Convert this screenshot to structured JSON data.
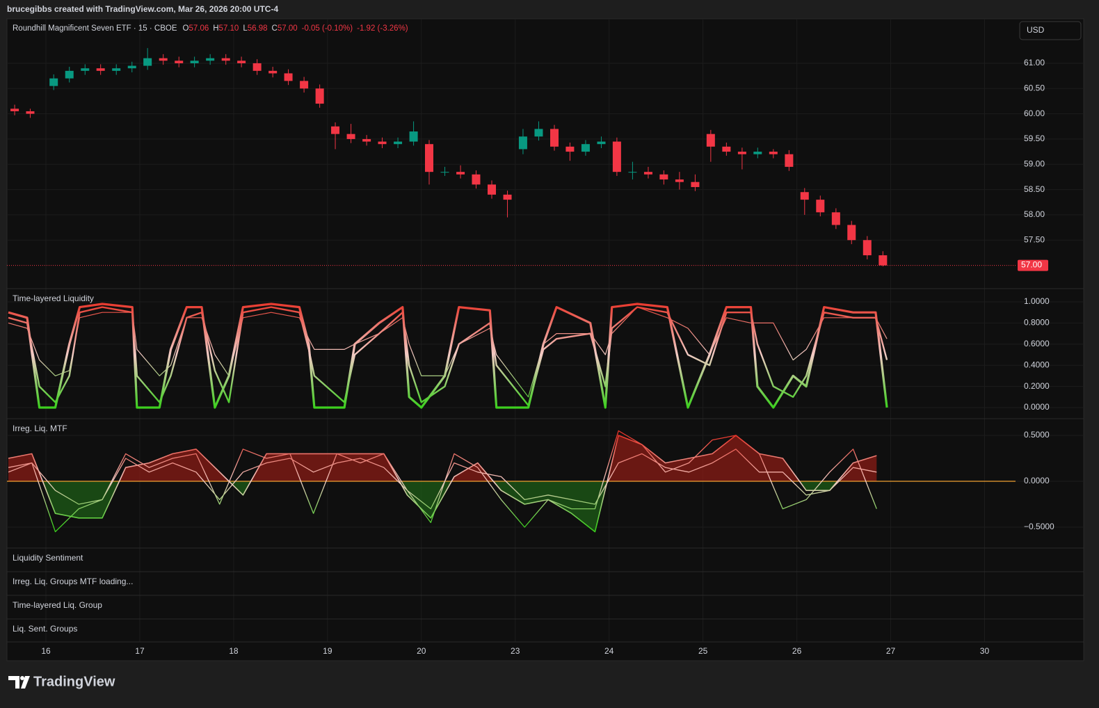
{
  "header": {
    "attribution": "brucegibbs created with TradingView.com, Mar 26, 2026 20:00 UTC-4"
  },
  "footer": {
    "brand": "TradingView"
  },
  "currency": "USD",
  "indicator_panes": [
    "Liquidity Sentiment",
    "Irreg. Liq. Groups MTF loading...",
    "Time-layered Liq. Group",
    "Liq. Sent. Groups"
  ],
  "chart_data": [
    {
      "type": "candlestick",
      "legend": {
        "symbol": "Roundhill Magnificent Seven ETF · 15 · CBOE",
        "o": "O",
        "open": "57.06",
        "h": "H",
        "high": "57.10",
        "l": "L",
        "low": "56.98",
        "c": "C",
        "close": "57.00",
        "change": "-0.05 (-0.10%)",
        "change_week": "-1.92 (-3.26%)"
      },
      "up_color": "#089981",
      "down_color": "#f23645",
      "x": [
        -0.333,
        -0.167,
        0.083,
        0.25,
        0.417,
        0.583,
        0.75,
        0.917,
        1.083,
        1.25,
        1.417,
        1.583,
        1.75,
        1.917,
        2.083,
        2.25,
        2.417,
        2.583,
        2.75,
        2.917,
        3.083,
        3.25,
        3.417,
        3.583,
        3.75,
        3.917,
        4.083,
        4.25,
        4.417,
        4.583,
        4.75,
        4.917,
        5.083,
        5.25,
        5.417,
        5.583,
        5.75,
        5.917,
        6.083,
        6.25,
        6.417,
        6.583,
        6.75,
        6.917,
        7.083,
        7.25,
        7.417,
        7.583,
        7.75,
        7.917,
        8.083,
        8.25,
        8.417,
        8.583,
        8.75,
        8.917
      ],
      "open": [
        60.1,
        60.05,
        60.55,
        60.7,
        60.85,
        60.9,
        60.85,
        60.9,
        60.95,
        61.1,
        61.05,
        61.0,
        61.05,
        61.1,
        61.05,
        61.0,
        60.85,
        60.8,
        60.65,
        60.5,
        59.75,
        59.6,
        59.5,
        59.45,
        59.4,
        59.45,
        59.4,
        58.85,
        58.85,
        58.8,
        58.6,
        58.4,
        59.3,
        59.55,
        59.7,
        59.35,
        59.25,
        59.4,
        59.45,
        58.85,
        58.85,
        58.8,
        58.7,
        58.65,
        59.6,
        59.35,
        59.25,
        59.2,
        59.25,
        59.2,
        58.45,
        58.3,
        58.05,
        57.8,
        57.5,
        57.2
      ],
      "high": [
        60.18,
        60.1,
        60.78,
        60.93,
        60.98,
        60.98,
        60.98,
        61.03,
        61.3,
        61.18,
        61.13,
        61.13,
        61.18,
        61.18,
        61.13,
        61.08,
        60.93,
        60.88,
        60.73,
        60.58,
        59.83,
        59.8,
        59.58,
        59.53,
        59.53,
        59.85,
        59.48,
        58.95,
        58.98,
        58.88,
        58.68,
        58.48,
        59.7,
        59.85,
        59.78,
        59.43,
        59.48,
        59.55,
        59.53,
        59.05,
        58.95,
        58.88,
        58.85,
        58.8,
        59.68,
        59.43,
        59.33,
        59.33,
        59.3,
        59.28,
        58.53,
        58.38,
        58.13,
        57.88,
        57.58,
        57.28
      ],
      "low": [
        59.97,
        59.92,
        60.47,
        60.62,
        60.77,
        60.77,
        60.77,
        60.82,
        60.87,
        60.97,
        60.92,
        60.92,
        60.97,
        60.97,
        60.92,
        60.77,
        60.72,
        60.57,
        60.42,
        60.12,
        59.3,
        59.42,
        59.37,
        59.32,
        59.32,
        59.37,
        58.6,
        58.77,
        58.72,
        58.52,
        58.32,
        57.95,
        59.2,
        59.47,
        59.27,
        59.07,
        59.17,
        59.32,
        58.77,
        58.7,
        58.72,
        58.6,
        58.5,
        58.47,
        59.05,
        59.17,
        58.9,
        59.12,
        59.12,
        58.87,
        58.0,
        57.97,
        57.72,
        57.42,
        57.12,
        56.98
      ],
      "close": [
        60.05,
        60.0,
        60.7,
        60.85,
        60.9,
        60.85,
        60.9,
        60.95,
        61.1,
        61.05,
        61.0,
        61.05,
        61.1,
        61.05,
        61.0,
        60.85,
        60.8,
        60.65,
        60.5,
        60.2,
        59.6,
        59.5,
        59.45,
        59.4,
        59.45,
        59.65,
        58.85,
        58.85,
        58.8,
        58.6,
        58.4,
        58.3,
        59.55,
        59.7,
        59.35,
        59.25,
        59.4,
        59.45,
        58.85,
        58.85,
        58.8,
        58.7,
        58.65,
        58.55,
        59.35,
        59.25,
        59.2,
        59.25,
        59.2,
        58.95,
        58.3,
        58.05,
        57.8,
        57.5,
        57.2,
        57.0
      ],
      "last_price": {
        "value": 57,
        "label": "57.00"
      },
      "xlim": [
        -0.415,
        10.33
      ],
      "xticks": [
        {
          "value": 0,
          "label": "16"
        },
        {
          "value": 1,
          "label": "17"
        },
        {
          "value": 2,
          "label": "18"
        },
        {
          "value": 3,
          "label": "19"
        },
        {
          "value": 4,
          "label": "20"
        },
        {
          "value": 5,
          "label": "23"
        },
        {
          "value": 6,
          "label": "24"
        },
        {
          "value": 7,
          "label": "25"
        },
        {
          "value": 8,
          "label": "26"
        },
        {
          "value": 9,
          "label": "27"
        },
        {
          "value": 10,
          "label": "30"
        }
      ],
      "ylim": [
        56.54,
        61.88
      ],
      "yticks": [
        {
          "value": 57.5,
          "label": "57.50"
        },
        {
          "value": 58,
          "label": "58.00"
        },
        {
          "value": 58.5,
          "label": "58.50"
        },
        {
          "value": 59,
          "label": "59.00"
        },
        {
          "value": 59.5,
          "label": "59.50"
        },
        {
          "value": 60,
          "label": "60.00"
        },
        {
          "value": 60.5,
          "label": "60.50"
        },
        {
          "value": 61,
          "label": "61.00"
        }
      ]
    },
    {
      "type": "line",
      "title": "Time-layered Liquidity",
      "gradient": [
        "#e8352a",
        "#f2cbc4",
        "#3ccf1e"
      ],
      "x": [
        -0.4,
        -0.2,
        -0.07,
        0.1,
        0.25,
        0.36,
        0.6,
        0.92,
        0.97,
        1.21,
        1.33,
        1.5,
        1.66,
        1.8,
        1.95,
        2.1,
        2.4,
        2.7,
        2.8,
        2.86,
        3.18,
        3.29,
        3.55,
        3.8,
        3.87,
        4.0,
        4.25,
        4.4,
        4.73,
        4.8,
        5.14,
        5.3,
        5.44,
        5.8,
        5.96,
        6.03,
        6.3,
        6.62,
        6.84,
        7.07,
        7.25,
        7.51,
        7.58,
        7.75,
        7.96,
        8.1,
        8.29,
        8.6,
        8.84,
        8.96
      ],
      "series": [
        {
          "values": [
            0.9,
            0.85,
            0.0,
            0.0,
            0.6,
            0.95,
            0.98,
            0.95,
            0.0,
            0.0,
            0.55,
            0.95,
            0.95,
            0.0,
            0.3,
            0.95,
            0.98,
            0.95,
            0.6,
            0.0,
            0.0,
            0.6,
            0.8,
            0.95,
            0.1,
            0.0,
            0.3,
            0.95,
            0.92,
            0.0,
            0.0,
            0.6,
            0.95,
            0.8,
            0.0,
            0.95,
            0.98,
            0.95,
            0.0,
            0.5,
            0.95,
            0.95,
            0.2,
            0.0,
            0.3,
            0.2,
            0.95,
            0.9,
            0.9,
            0.0
          ]
        },
        {
          "values": [
            0.85,
            0.8,
            0.2,
            0.05,
            0.3,
            0.9,
            0.95,
            0.9,
            0.3,
            0.05,
            0.3,
            0.85,
            0.9,
            0.35,
            0.05,
            0.9,
            0.95,
            0.9,
            0.55,
            0.3,
            0.05,
            0.5,
            0.7,
            0.9,
            0.4,
            0.05,
            0.2,
            0.6,
            0.8,
            0.4,
            0.02,
            0.55,
            0.65,
            0.7,
            0.2,
            0.75,
            0.95,
            0.9,
            0.5,
            0.4,
            0.9,
            0.9,
            0.6,
            0.2,
            0.1,
            0.3,
            0.9,
            0.85,
            0.85,
            0.45
          ]
        },
        {
          "values": [
            0.8,
            0.75,
            0.45,
            0.3,
            0.35,
            0.85,
            0.9,
            0.9,
            0.55,
            0.3,
            0.4,
            0.85,
            0.85,
            0.5,
            0.3,
            0.85,
            0.9,
            0.85,
            0.65,
            0.55,
            0.55,
            0.6,
            0.7,
            0.85,
            0.6,
            0.3,
            0.3,
            0.6,
            0.75,
            0.5,
            0.1,
            0.6,
            0.7,
            0.7,
            0.5,
            0.7,
            0.95,
            0.85,
            0.75,
            0.5,
            0.85,
            0.8,
            0.8,
            0.8,
            0.45,
            0.55,
            0.85,
            0.85,
            0.85,
            0.65
          ]
        }
      ],
      "ylim": [
        -0.105,
        1.125
      ],
      "yticks": [
        {
          "value": 0,
          "label": "0.0000"
        },
        {
          "value": 0.2,
          "label": "0.2000"
        },
        {
          "value": 0.4,
          "label": "0.4000"
        },
        {
          "value": 0.6,
          "label": "0.6000"
        },
        {
          "value": 0.8,
          "label": "0.8000"
        },
        {
          "value": 1,
          "label": "1.0000"
        }
      ]
    },
    {
      "type": "area",
      "title": "Irreg. Liq. MTF",
      "gradient": [
        "#e8352a",
        "#f2cbc4",
        "#3ccf1e"
      ],
      "fill_colors": [
        "#8a1c16",
        "#1e5c17"
      ],
      "zero_line_color": "#f0a030",
      "x": [
        -0.4,
        -0.15,
        0.1,
        0.35,
        0.6,
        0.85,
        1.1,
        1.35,
        1.6,
        1.85,
        2.1,
        2.35,
        2.6,
        2.85,
        3.1,
        3.35,
        3.6,
        3.85,
        4.1,
        4.35,
        4.6,
        4.85,
        5.1,
        5.35,
        5.6,
        5.85,
        6.1,
        6.35,
        6.6,
        6.85,
        7.1,
        7.35,
        7.6,
        7.85,
        8.1,
        8.35,
        8.6,
        8.85
      ],
      "series": [
        {
          "fill": true,
          "values": [
            0.25,
            0.3,
            -0.35,
            -0.4,
            -0.4,
            0.15,
            0.2,
            0.3,
            0.35,
            0.1,
            -0.15,
            0.3,
            0.3,
            0.3,
            0.3,
            0.3,
            0.3,
            -0.15,
            -0.4,
            0.05,
            0.2,
            -0.1,
            -0.25,
            -0.2,
            -0.35,
            -0.55,
            0.5,
            0.4,
            0.2,
            0.25,
            0.3,
            0.5,
            0.3,
            0.25,
            -0.1,
            -0.1,
            0.2,
            0.28
          ]
        },
        {
          "values": [
            0.1,
            0.2,
            -0.1,
            -0.25,
            -0.2,
            0.25,
            0.1,
            0.2,
            0.1,
            -0.2,
            0.1,
            0.2,
            0.25,
            0.1,
            0.2,
            0.25,
            0.15,
            -0.1,
            -0.3,
            0.2,
            0.1,
            0.05,
            -0.2,
            -0.15,
            -0.2,
            -0.25,
            0.2,
            0.3,
            0.15,
            0.1,
            0.2,
            0.35,
            0.1,
            0.1,
            -0.15,
            -0.1,
            0.15,
            0.1
          ]
        },
        {
          "values": [
            0.15,
            0.2,
            -0.55,
            -0.3,
            -0.2,
            0.3,
            0.15,
            0.25,
            0.3,
            -0.25,
            0.35,
            0.25,
            0.3,
            -0.35,
            0.3,
            0.2,
            0.3,
            -0.1,
            -0.45,
            0.3,
            0.15,
            -0.2,
            -0.5,
            -0.2,
            -0.3,
            -0.3,
            0.55,
            0.4,
            0.1,
            0.2,
            0.45,
            0.5,
            0.3,
            -0.3,
            -0.2,
            0.1,
            0.35,
            -0.3
          ]
        }
      ],
      "ylim": [
        -0.727,
        0.682
      ],
      "yticks": [
        {
          "value": -0.5,
          "label": "−0.5000"
        },
        {
          "value": 0,
          "label": "0.0000"
        },
        {
          "value": 0.5,
          "label": "0.5000"
        }
      ]
    }
  ]
}
